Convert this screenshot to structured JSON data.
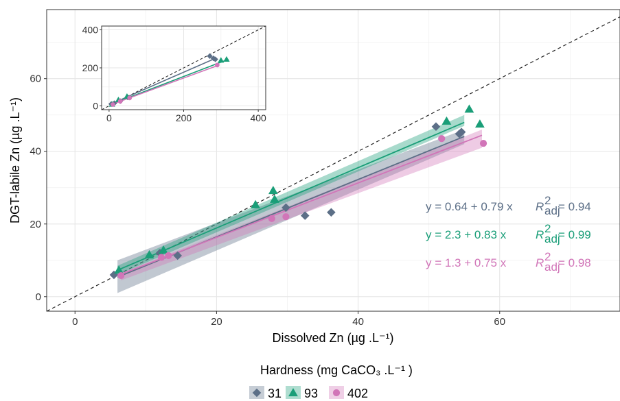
{
  "chart_data": [
    {
      "type": "scatter",
      "xlabel": "Dissolved Zn (µg .L⁻¹)",
      "ylabel": "DGT-labile Zn  (µg .L⁻¹)",
      "xlim": [
        -4,
        77
      ],
      "ylim": [
        -4,
        79
      ],
      "xticks": [
        0,
        20,
        40,
        60
      ],
      "yticks": [
        0,
        20,
        40,
        60
      ],
      "xtick_labels": [
        "0",
        "20",
        "40",
        "60"
      ],
      "ytick_labels": [
        "0",
        "20",
        "40",
        "60"
      ],
      "grid": true,
      "reference_line": {
        "style": "dashed",
        "slope": 1,
        "intercept": 0
      },
      "legend": {
        "title": "Hardness (mg CaCO₃ .L⁻¹ )",
        "placement": "bottom",
        "entries": [
          "31",
          "93",
          "402"
        ]
      },
      "series": [
        {
          "name": "31",
          "color": "#5c6f87",
          "marker": "diamond",
          "intercept": 0.64,
          "slope": 0.79,
          "fit_x_range": [
            6,
            55
          ],
          "ci_low": [
            1,
            42
          ],
          "ci_high": [
            10,
            46
          ],
          "points": [
            [
              5.5,
              6
            ],
            [
              12,
              12
            ],
            [
              14.5,
              11.3
            ],
            [
              29.8,
              24.5
            ],
            [
              32.5,
              22.3
            ],
            [
              36.2,
              23.2
            ],
            [
              51,
              46.8
            ],
            [
              54.3,
              44.8
            ],
            [
              54.6,
              45.3
            ]
          ],
          "equation": {
            "lhs": "y = 0.64 + 0.79 x",
            "r2_label": "R",
            "r2_sup": "2",
            "r2_sub": "adj",
            "r2_value": " = 0.94"
          }
        },
        {
          "name": "93",
          "color": "#1a9e78",
          "marker": "triangle",
          "intercept": 2.3,
          "slope": 0.83,
          "fit_x_range": [
            6,
            55
          ],
          "ci_low": [
            6,
            47
          ],
          "ci_high": [
            8.5,
            50
          ],
          "points": [
            [
              6.2,
              7.3
            ],
            [
              10.5,
              11.5
            ],
            [
              12.5,
              12.8
            ],
            [
              25.5,
              25.3
            ],
            [
              28,
              29.2
            ],
            [
              28.2,
              26.8
            ],
            [
              52.5,
              48.3
            ],
            [
              55.7,
              51.6
            ],
            [
              57.2,
              47.5
            ]
          ],
          "equation": {
            "lhs": "y = 2.3 + 0.83 x",
            "r2_label": "R",
            "r2_sup": "2",
            "r2_sub": "adj",
            "r2_value": " = 0.99"
          }
        },
        {
          "name": "402",
          "color": "#d175b8",
          "marker": "circle",
          "intercept": 1.3,
          "slope": 0.75,
          "fit_x_range": [
            6.5,
            57.5
          ],
          "ci_low": [
            4.5,
            41
          ],
          "ci_high": [
            6.5,
            46
          ],
          "points": [
            [
              6.5,
              5.8
            ],
            [
              12.2,
              10.8
            ],
            [
              13.2,
              11.3
            ],
            [
              27.8,
              21.5
            ],
            [
              29.8,
              22
            ],
            [
              51.8,
              43.5
            ],
            [
              57.7,
              42.2
            ]
          ],
          "equation": {
            "lhs": "y = 1.3 + 0.75 x",
            "r2_label": "R",
            "r2_sup": "2",
            "r2_sub": "adj",
            "r2_value": " = 0.98"
          }
        }
      ]
    },
    {
      "type": "scatter",
      "xlim": [
        -20,
        420
      ],
      "ylim": [
        -20,
        420
      ],
      "xticks": [
        0,
        200,
        400
      ],
      "yticks": [
        0,
        200,
        400
      ],
      "xtick_labels": [
        "0",
        "200",
        "400"
      ],
      "ytick_labels": [
        "0",
        "200",
        "400"
      ],
      "grid": true,
      "reference_line": {
        "style": "dashed",
        "slope": 1,
        "intercept": 0
      },
      "series": [
        {
          "name": "31",
          "color": "#5c6f87",
          "marker": "diamond",
          "fit": [
            [
              5,
              10
            ],
            [
              285,
              250
            ]
          ],
          "points": [
            [
              6,
              10
            ],
            [
              14,
              14
            ],
            [
              30,
              25
            ],
            [
              50,
              45
            ],
            [
              270,
              262
            ],
            [
              280,
              250
            ],
            [
              285,
              245
            ]
          ]
        },
        {
          "name": "93",
          "color": "#1a9e78",
          "marker": "triangle",
          "fit": [
            [
              5,
              8
            ],
            [
              320,
              245
            ]
          ],
          "points": [
            [
              8,
              8
            ],
            [
              25,
              32
            ],
            [
              48,
              50
            ],
            [
              300,
              240
            ],
            [
              315,
              245
            ]
          ]
        },
        {
          "name": "402",
          "color": "#d175b8",
          "marker": "circle",
          "fit": [
            [
              5,
              6
            ],
            [
              295,
              215
            ]
          ],
          "points": [
            [
              10,
              7
            ],
            [
              30,
              24
            ],
            [
              55,
              42
            ],
            [
              290,
              215
            ]
          ]
        }
      ]
    }
  ]
}
